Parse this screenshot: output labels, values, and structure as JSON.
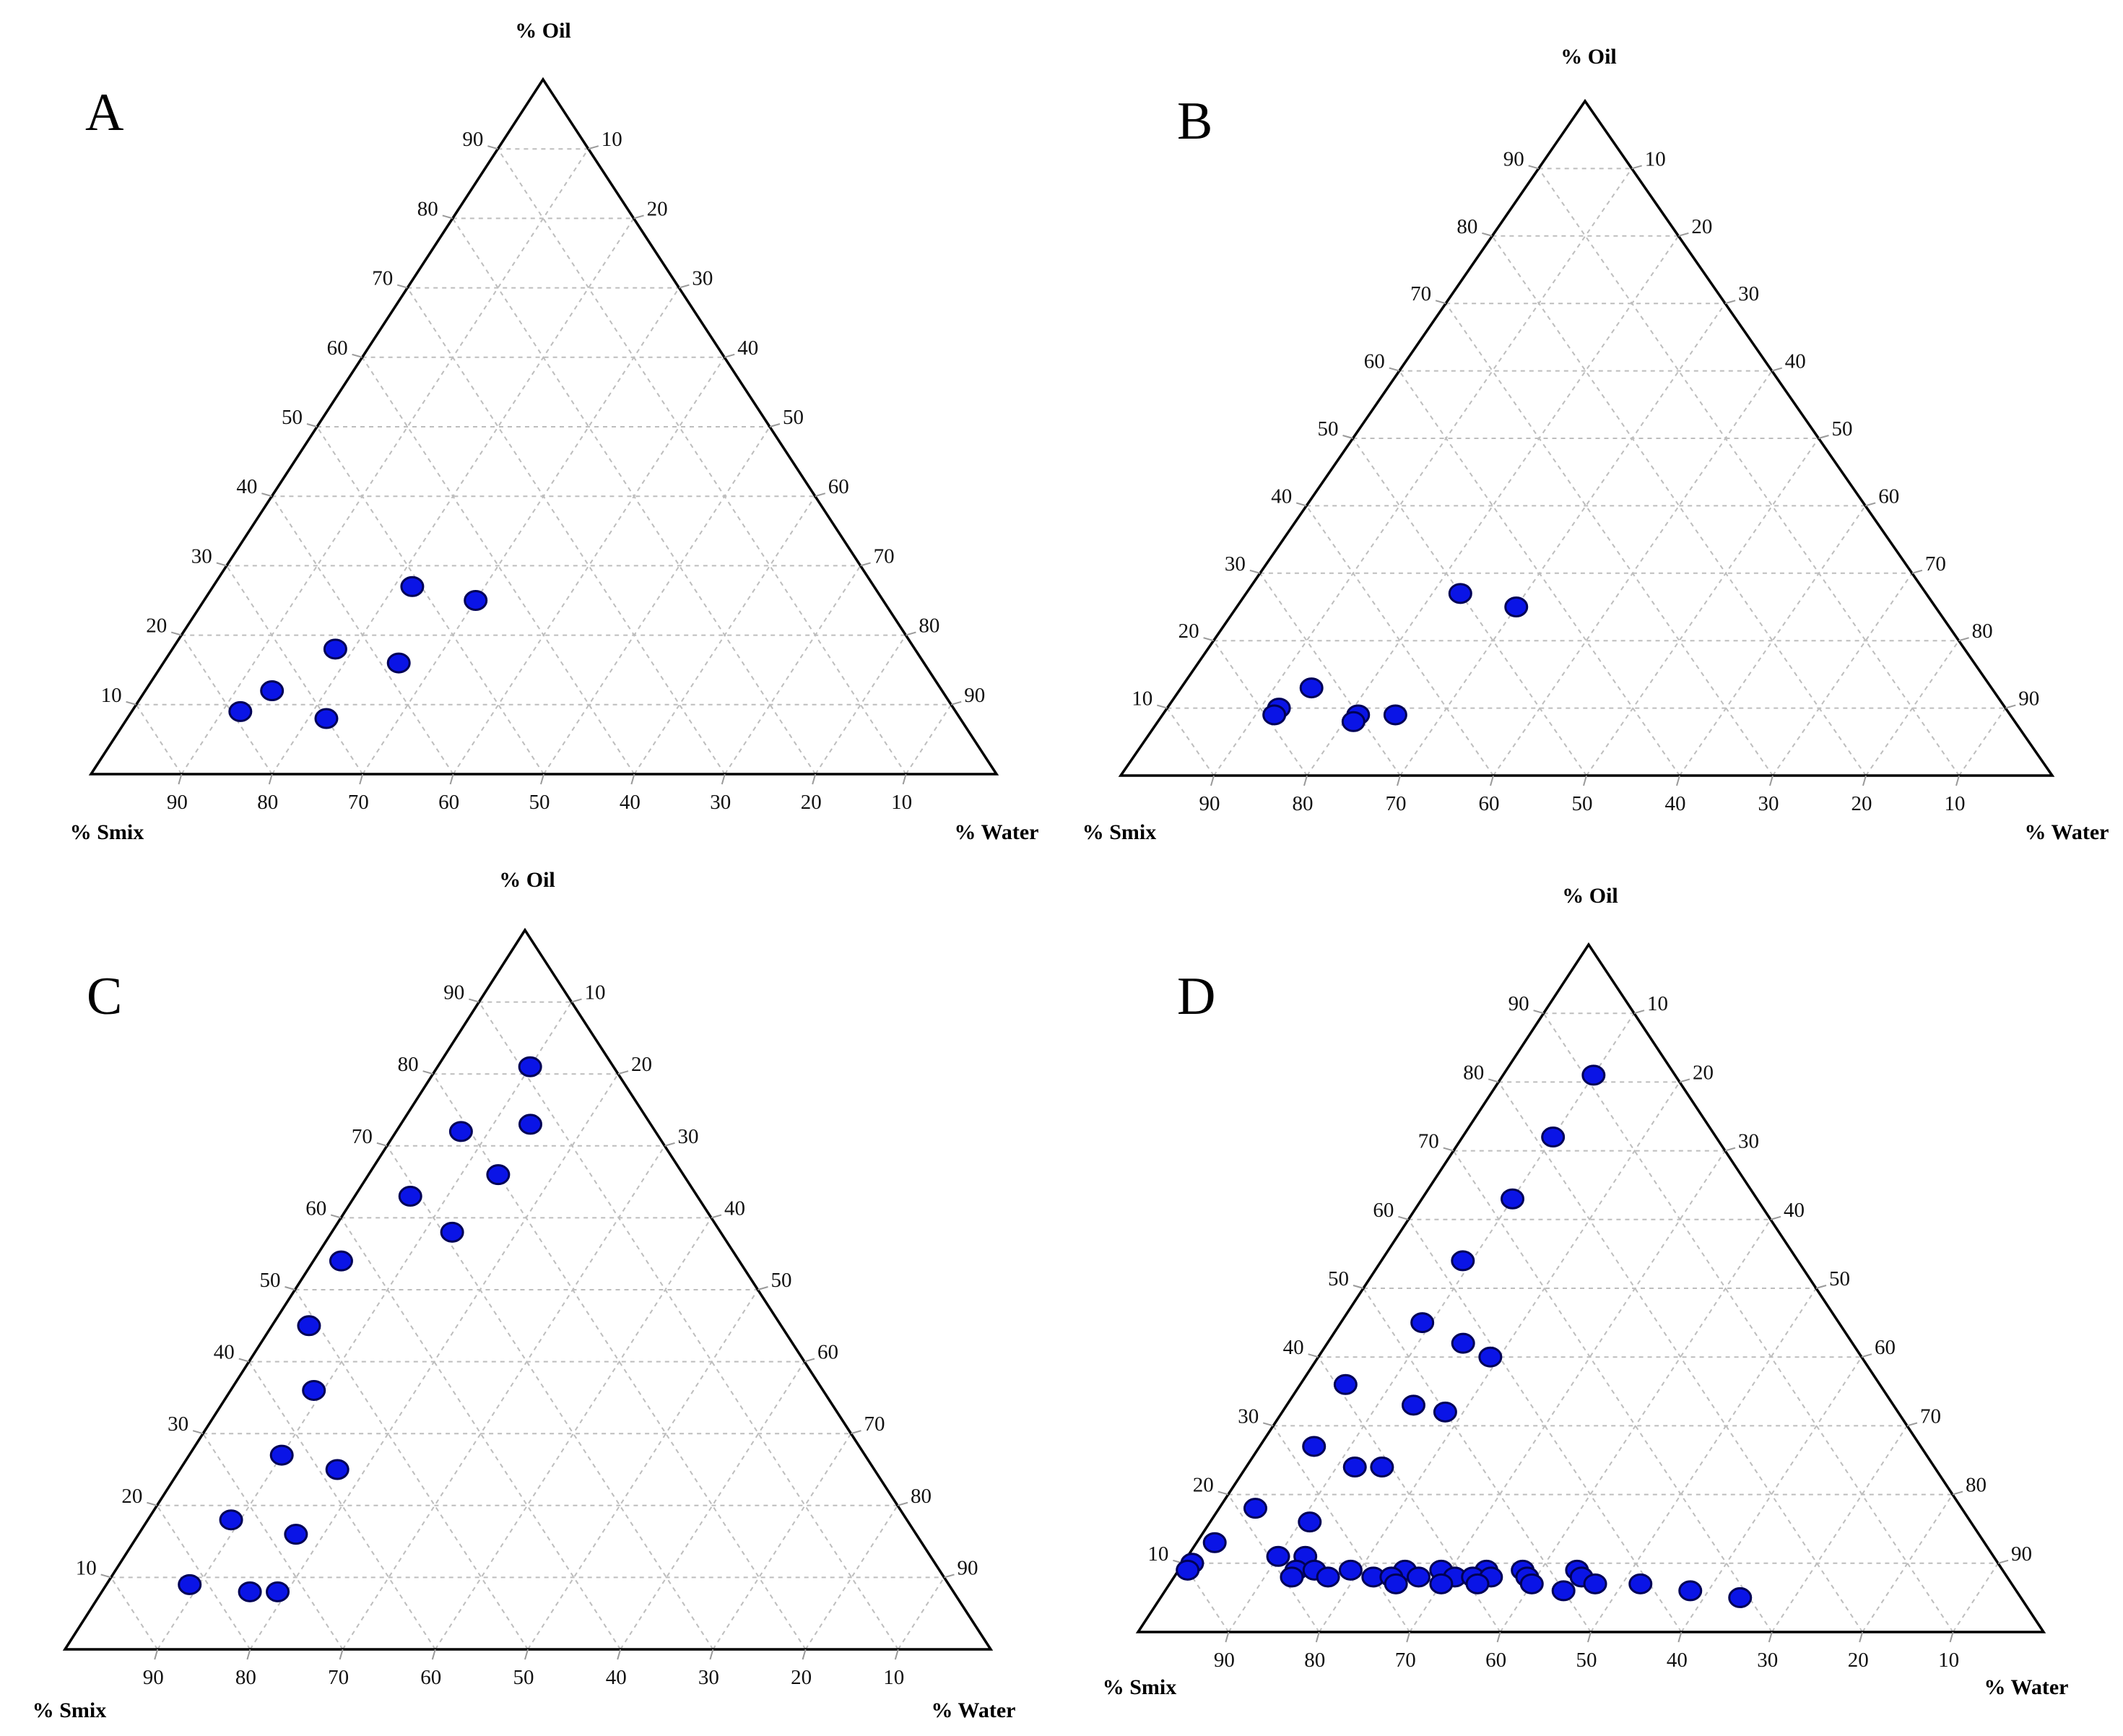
{
  "figure": {
    "description_labels": [
      "A",
      "B",
      "C",
      "D"
    ]
  },
  "chart_data": [
    {
      "type": "scatter",
      "subtype": "ternary",
      "title": "A",
      "axes": {
        "top": "% Oil",
        "left": "% Smix",
        "right": "% Water"
      },
      "oil_ticks": [
        "10",
        "20",
        "30",
        "40",
        "50",
        "60",
        "70",
        "80",
        "90"
      ],
      "water_ticks": [
        "10",
        "20",
        "30",
        "40",
        "50",
        "60",
        "70",
        "80",
        "90"
      ],
      "smix_ticks": [
        "90",
        "80",
        "70",
        "60",
        "50",
        "40",
        "30",
        "20",
        "10"
      ],
      "points_oil_water_smix": [
        [
          27,
          22,
          51
        ],
        [
          25,
          30,
          45
        ],
        [
          18,
          18,
          64
        ],
        [
          16,
          26,
          58
        ],
        [
          12,
          14,
          74
        ],
        [
          9,
          12,
          79
        ],
        [
          8,
          22,
          70
        ]
      ],
      "grid": true
    },
    {
      "type": "scatter",
      "subtype": "ternary",
      "title": "B",
      "axes": {
        "top": "% Oil",
        "left": "% Smix",
        "right": "% Water"
      },
      "oil_ticks": [
        "10",
        "20",
        "30",
        "40",
        "50",
        "60",
        "70",
        "80",
        "90"
      ],
      "water_ticks": [
        "10",
        "20",
        "30",
        "40",
        "50",
        "60",
        "70",
        "80",
        "90"
      ],
      "smix_ticks": [
        "90",
        "80",
        "70",
        "60",
        "50",
        "40",
        "30",
        "20",
        "10"
      ],
      "points_oil_water_smix": [
        [
          27,
          23,
          50
        ],
        [
          25,
          30,
          45
        ],
        [
          13,
          14,
          73
        ],
        [
          10,
          12,
          78
        ],
        [
          9,
          12,
          79
        ],
        [
          9,
          21,
          70
        ],
        [
          8,
          21,
          71
        ],
        [
          9,
          25,
          66
        ]
      ],
      "grid": true
    },
    {
      "type": "scatter",
      "subtype": "ternary",
      "title": "C",
      "axes": {
        "top": "% Oil",
        "left": "% Smix",
        "right": "% Water"
      },
      "oil_ticks": [
        "10",
        "20",
        "30",
        "40",
        "50",
        "60",
        "70",
        "80",
        "90"
      ],
      "water_ticks": [
        "10",
        "20",
        "30",
        "40",
        "50",
        "60",
        "70",
        "80",
        "90"
      ],
      "smix_ticks": [
        "90",
        "80",
        "70",
        "60",
        "50",
        "40",
        "30",
        "20",
        "10"
      ],
      "points_oil_water_smix": [
        [
          81,
          10,
          9
        ],
        [
          73,
          14,
          13
        ],
        [
          72,
          7,
          21
        ],
        [
          66,
          14,
          20
        ],
        [
          63,
          6,
          31
        ],
        [
          58,
          13,
          29
        ],
        [
          54,
          3,
          43
        ],
        [
          45,
          4,
          51
        ],
        [
          36,
          9,
          55
        ],
        [
          27,
          10,
          63
        ],
        [
          25,
          17,
          58
        ],
        [
          18,
          9,
          73
        ],
        [
          16,
          17,
          67
        ],
        [
          9,
          9,
          82
        ],
        [
          8,
          16,
          76
        ],
        [
          8,
          19,
          73
        ]
      ],
      "grid": true
    },
    {
      "type": "scatter",
      "subtype": "ternary",
      "title": "D",
      "axes": {
        "top": "% Oil",
        "left": "% Smix",
        "right": "% Water"
      },
      "oil_ticks": [
        "10",
        "20",
        "30",
        "40",
        "50",
        "60",
        "70",
        "80",
        "90"
      ],
      "water_ticks": [
        "10",
        "20",
        "30",
        "40",
        "50",
        "60",
        "70",
        "80",
        "90"
      ],
      "smix_ticks": [
        "90",
        "80",
        "70",
        "60",
        "50",
        "40",
        "30",
        "20",
        "10"
      ],
      "points_oil_water_smix": [
        [
          81,
          10,
          9
        ],
        [
          72,
          10,
          18
        ],
        [
          63,
          10,
          27
        ],
        [
          54,
          9,
          37
        ],
        [
          45,
          9,
          46
        ],
        [
          42,
          15,
          43
        ],
        [
          40,
          19,
          41
        ],
        [
          36,
          5,
          59
        ],
        [
          33,
          14,
          53
        ],
        [
          32,
          18,
          50
        ],
        [
          27,
          6,
          67
        ],
        [
          24,
          12,
          64
        ],
        [
          24,
          15,
          61
        ],
        [
          18,
          4,
          78
        ],
        [
          16,
          11,
          73
        ],
        [
          13,
          2,
          85
        ],
        [
          11,
          10,
          79
        ],
        [
          11,
          13,
          76
        ],
        [
          10,
          1,
          89
        ],
        [
          9,
          1,
          90
        ],
        [
          9,
          13,
          78
        ],
        [
          9,
          15,
          76
        ],
        [
          9,
          19,
          72
        ],
        [
          9,
          25,
          66
        ],
        [
          9,
          29,
          62
        ],
        [
          9,
          34,
          57
        ],
        [
          9,
          38,
          53
        ],
        [
          9,
          44,
          47
        ],
        [
          8,
          13,
          79
        ],
        [
          8,
          17,
          75
        ],
        [
          8,
          22,
          70
        ],
        [
          8,
          24,
          68
        ],
        [
          8,
          27,
          65
        ],
        [
          8,
          31,
          61
        ],
        [
          8,
          33,
          59
        ],
        [
          8,
          35,
          57
        ],
        [
          8,
          39,
          53
        ],
        [
          8,
          45,
          47
        ],
        [
          7,
          25,
          68
        ],
        [
          7,
          30,
          63
        ],
        [
          7,
          34,
          59
        ],
        [
          7,
          40,
          53
        ],
        [
          7,
          47,
          46
        ],
        [
          7,
          52,
          41
        ],
        [
          6,
          44,
          50
        ],
        [
          6,
          58,
          36
        ],
        [
          5,
          64,
          31
        ]
      ],
      "grid": true
    }
  ]
}
